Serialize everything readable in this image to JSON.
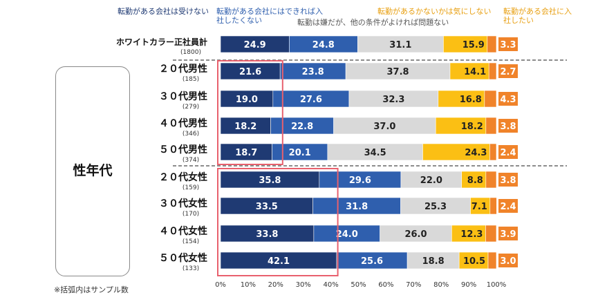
{
  "chart_data": {
    "type": "bar",
    "orientation": "horizontal",
    "stacked": true,
    "title": "",
    "xlabel": "",
    "ylabel": "",
    "xlim": [
      0,
      100
    ],
    "xticks": [
      "0%",
      "10%",
      "20%",
      "30%",
      "40%",
      "50%",
      "60%",
      "70%",
      "80%",
      "90%",
      "100%"
    ],
    "legend": [
      {
        "label": "転勤がある会社は受けない",
        "color": "#1f3a73"
      },
      {
        "label": "転勤がある会社にはできれば入社したくない",
        "color": "#2f5fae"
      },
      {
        "label": "転勤は嫌だが、他の条件がよければ問題ない",
        "color": "#d9d9d9"
      },
      {
        "label": "転勤があるかないかは気にしない",
        "color": "#fbbf14"
      },
      {
        "label": "転勤がある会社に入社したい",
        "color": "#f0832a"
      }
    ],
    "categories": [
      {
        "name": "ホワイトカラー正社員計",
        "n": "(1800)"
      },
      {
        "name": "２０代男性",
        "n": "(185)"
      },
      {
        "name": "３０代男性",
        "n": "(279)"
      },
      {
        "name": "４０代男性",
        "n": "(346)"
      },
      {
        "name": "５０代男性",
        "n": "(374)"
      },
      {
        "name": "２０代女性",
        "n": "(159)"
      },
      {
        "name": "３０代女性",
        "n": "(170)"
      },
      {
        "name": "４０代女性",
        "n": "(154)"
      },
      {
        "name": "５０代女性",
        "n": "(133)"
      }
    ],
    "series": [
      {
        "name": "転勤がある会社は受けない",
        "values": [
          24.9,
          21.6,
          19.0,
          18.2,
          18.7,
          35.8,
          33.5,
          33.8,
          42.1
        ]
      },
      {
        "name": "転勤がある会社にはできれば入社したくない",
        "values": [
          24.8,
          23.8,
          27.6,
          22.8,
          20.1,
          29.6,
          31.8,
          24.0,
          25.6
        ]
      },
      {
        "name": "転勤は嫌だが、他の条件がよければ問題ない",
        "values": [
          31.1,
          37.8,
          32.3,
          37.0,
          34.5,
          22.0,
          25.3,
          26.0,
          18.8
        ]
      },
      {
        "name": "転勤があるかないかは気にしない",
        "values": [
          15.9,
          14.1,
          16.8,
          18.2,
          24.3,
          8.8,
          7.1,
          12.3,
          10.5
        ]
      },
      {
        "name": "転勤がある会社に入社したい",
        "values": [
          3.3,
          2.7,
          4.3,
          3.8,
          2.4,
          3.8,
          2.4,
          3.9,
          3.0
        ]
      }
    ],
    "group_label": "性年代",
    "footnote": "※括弧内はサンプル数",
    "highlights": [
      {
        "rows": [
          "２０代男性",
          "５０代男性"
        ],
        "range": [
          0,
          20
        ]
      },
      {
        "rows": [
          "２０代女性",
          "５０代女性"
        ],
        "range": [
          0,
          40
        ]
      }
    ]
  },
  "colors": {
    "dark_navy": "#1f3a73",
    "blue": "#2f5fae",
    "gray": "#d9d9d9",
    "yellow": "#fbbf14",
    "orange": "#f0832a",
    "highlight": "#e8606d"
  }
}
